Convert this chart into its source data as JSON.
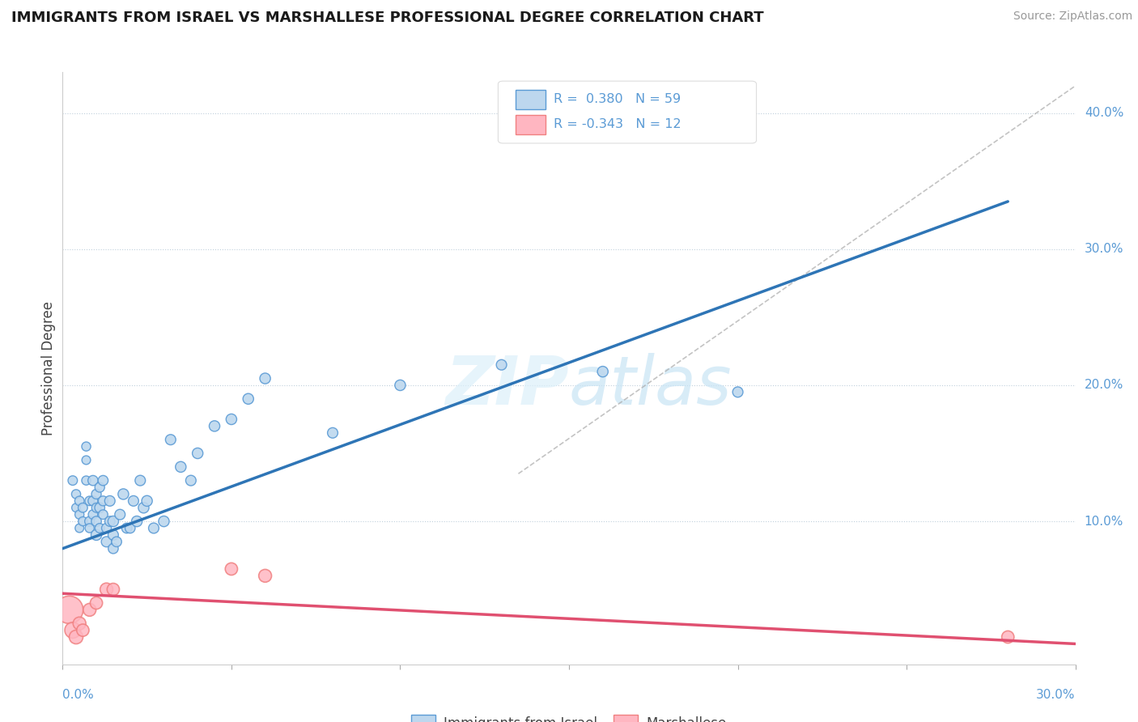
{
  "title": "IMMIGRANTS FROM ISRAEL VS MARSHALLESE PROFESSIONAL DEGREE CORRELATION CHART",
  "source": "Source: ZipAtlas.com",
  "ylabel": "Professional Degree",
  "legend_label1": "Immigrants from Israel",
  "legend_label2": "Marshallese",
  "r1": 0.38,
  "n1": 59,
  "r2": -0.343,
  "n2": 12,
  "xlim": [
    0.0,
    0.3
  ],
  "ylim": [
    -0.005,
    0.43
  ],
  "color_blue_edge": "#5B9BD5",
  "color_blue_fill": "#BDD7EE",
  "color_blue_line": "#2E75B6",
  "color_pink_edge": "#F08080",
  "color_pink_fill": "#FFB6C1",
  "color_pink_line": "#E05070",
  "color_dashed": "#AAAAAA",
  "color_grid": "#C0D0DC",
  "background": "#FFFFFF",
  "israel_x": [
    0.003,
    0.004,
    0.004,
    0.005,
    0.005,
    0.005,
    0.006,
    0.006,
    0.007,
    0.007,
    0.007,
    0.008,
    0.008,
    0.008,
    0.009,
    0.009,
    0.009,
    0.01,
    0.01,
    0.01,
    0.01,
    0.011,
    0.011,
    0.011,
    0.012,
    0.012,
    0.012,
    0.013,
    0.013,
    0.014,
    0.014,
    0.015,
    0.015,
    0.015,
    0.016,
    0.017,
    0.018,
    0.019,
    0.02,
    0.021,
    0.022,
    0.023,
    0.024,
    0.025,
    0.027,
    0.03,
    0.032,
    0.035,
    0.038,
    0.04,
    0.045,
    0.05,
    0.055,
    0.06,
    0.08,
    0.1,
    0.13,
    0.16,
    0.2
  ],
  "israel_y": [
    0.13,
    0.11,
    0.12,
    0.105,
    0.115,
    0.095,
    0.1,
    0.11,
    0.155,
    0.145,
    0.13,
    0.1,
    0.115,
    0.095,
    0.105,
    0.115,
    0.13,
    0.09,
    0.1,
    0.11,
    0.12,
    0.095,
    0.11,
    0.125,
    0.105,
    0.115,
    0.13,
    0.085,
    0.095,
    0.1,
    0.115,
    0.08,
    0.09,
    0.1,
    0.085,
    0.105,
    0.12,
    0.095,
    0.095,
    0.115,
    0.1,
    0.13,
    0.11,
    0.115,
    0.095,
    0.1,
    0.16,
    0.14,
    0.13,
    0.15,
    0.17,
    0.175,
    0.19,
    0.205,
    0.165,
    0.2,
    0.215,
    0.21,
    0.195
  ],
  "israel_sizes": [
    70,
    60,
    65,
    65,
    70,
    60,
    65,
    70,
    65,
    60,
    65,
    75,
    70,
    65,
    70,
    75,
    80,
    90,
    80,
    70,
    75,
    70,
    80,
    75,
    70,
    75,
    80,
    85,
    75,
    80,
    85,
    80,
    85,
    90,
    80,
    85,
    90,
    80,
    80,
    85,
    90,
    85,
    90,
    90,
    85,
    90,
    85,
    90,
    85,
    90,
    90,
    90,
    90,
    90,
    85,
    90,
    85,
    90,
    85
  ],
  "marshallese_x": [
    0.002,
    0.003,
    0.004,
    0.005,
    0.006,
    0.008,
    0.01,
    0.013,
    0.015,
    0.05,
    0.06,
    0.28
  ],
  "marshallese_y": [
    0.035,
    0.02,
    0.015,
    0.025,
    0.02,
    0.035,
    0.04,
    0.05,
    0.05,
    0.065,
    0.06,
    0.015
  ],
  "marshallese_sizes": [
    600,
    200,
    150,
    130,
    120,
    130,
    120,
    130,
    120,
    120,
    130,
    120
  ],
  "israel_line_x0": 0.0,
  "israel_line_y0": 0.08,
  "israel_line_x1": 0.28,
  "israel_line_y1": 0.335,
  "marsh_line_x0": 0.0,
  "marsh_line_y0": 0.047,
  "marsh_line_x1": 0.3,
  "marsh_line_y1": 0.01,
  "diag_line_x0": 0.135,
  "diag_line_y0": 0.135,
  "diag_line_x1": 0.3,
  "diag_line_y1": 0.42
}
